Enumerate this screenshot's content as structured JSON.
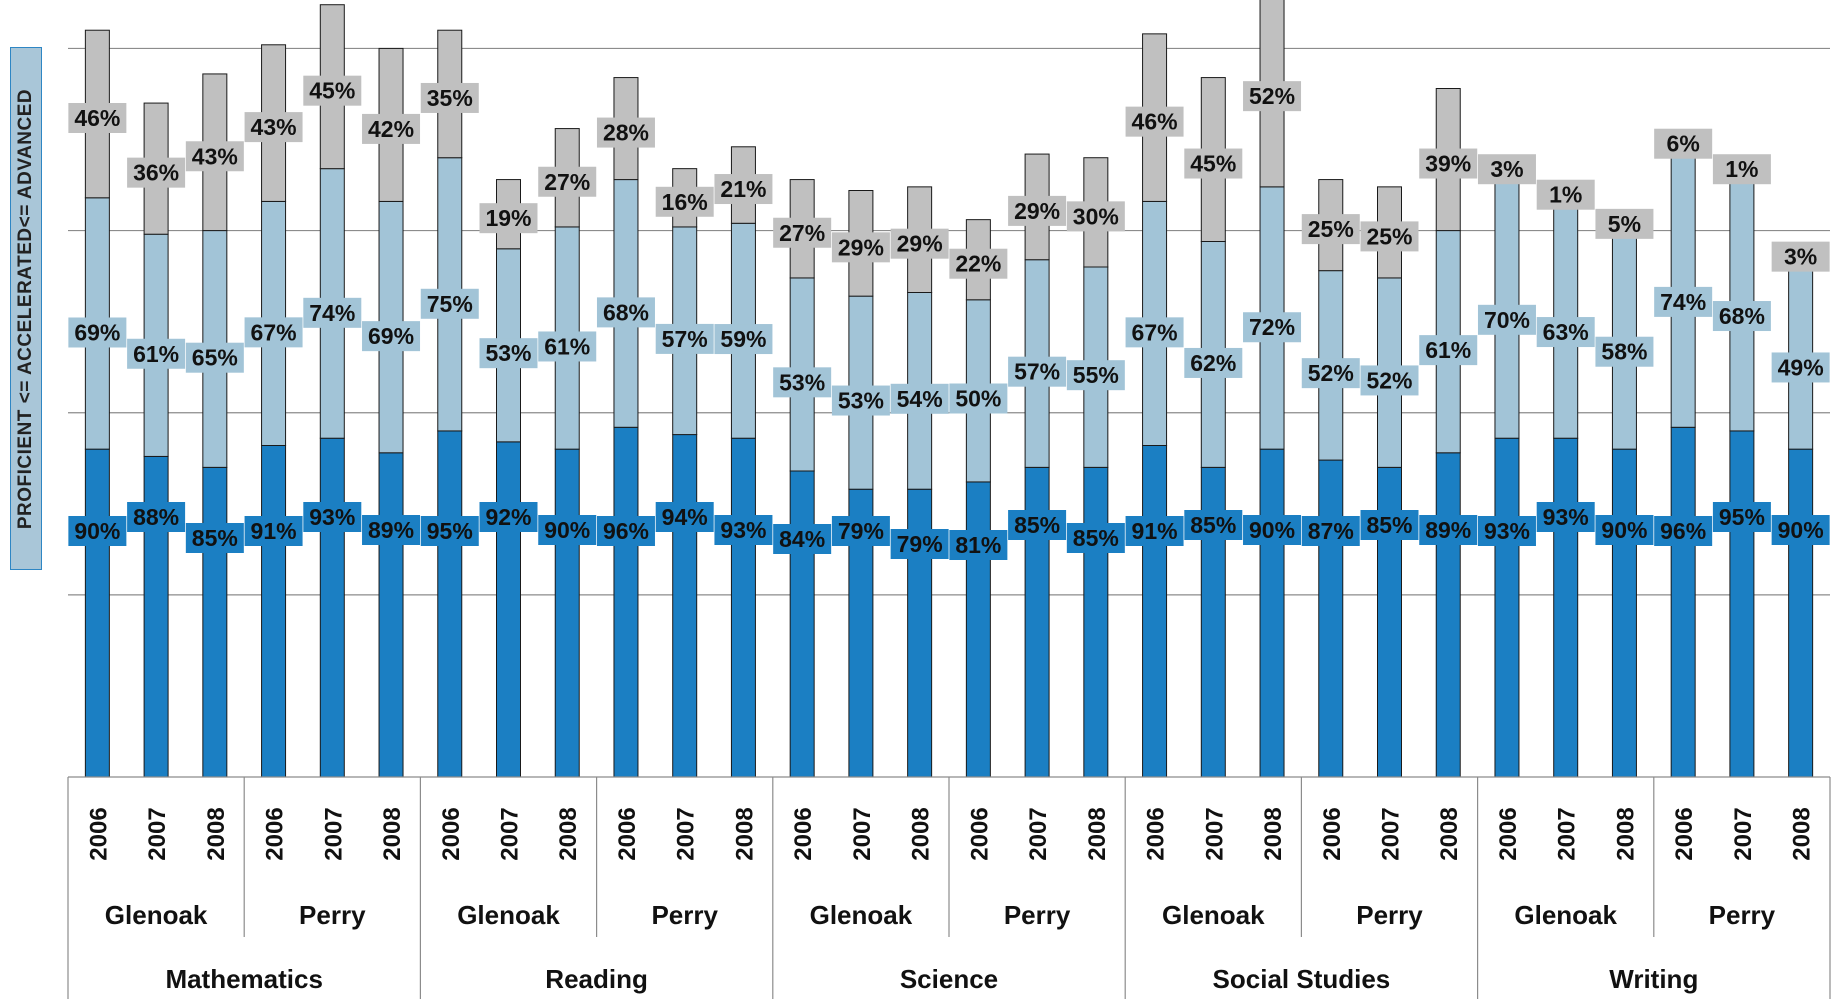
{
  "chart_data": {
    "type": "bar",
    "stacked": true,
    "y_axis_label": "PROFICIENT <=   ACCELERATED<=   ADVANCED",
    "ylim": [
      0,
      210
    ],
    "grid": true,
    "colors": {
      "proficient": "#1b7fc3",
      "accelerated": "#a2c4d7",
      "advanced": "#c0c0c0"
    },
    "groups": [
      {
        "subject": "Mathematics",
        "schools": [
          {
            "school": "Glenoak",
            "years": [
              {
                "year": "2006",
                "proficient": 90,
                "accelerated": 69,
                "advanced": 46
              },
              {
                "year": "2007",
                "proficient": 88,
                "accelerated": 61,
                "advanced": 36
              },
              {
                "year": "2008",
                "proficient": 85,
                "accelerated": 65,
                "advanced": 43
              }
            ]
          },
          {
            "school": "Perry",
            "years": [
              {
                "year": "2006",
                "proficient": 91,
                "accelerated": 67,
                "advanced": 43
              },
              {
                "year": "2007",
                "proficient": 93,
                "accelerated": 74,
                "advanced": 45
              },
              {
                "year": "2008",
                "proficient": 89,
                "accelerated": 69,
                "advanced": 42
              }
            ]
          }
        ]
      },
      {
        "subject": "Reading",
        "schools": [
          {
            "school": "Glenoak",
            "years": [
              {
                "year": "2006",
                "proficient": 95,
                "accelerated": 75,
                "advanced": 35
              },
              {
                "year": "2007",
                "proficient": 92,
                "accelerated": 53,
                "advanced": 19
              },
              {
                "year": "2008",
                "proficient": 90,
                "accelerated": 61,
                "advanced": 27
              }
            ]
          },
          {
            "school": "Perry",
            "years": [
              {
                "year": "2006",
                "proficient": 96,
                "accelerated": 68,
                "advanced": 28
              },
              {
                "year": "2007",
                "proficient": 94,
                "accelerated": 57,
                "advanced": 16
              },
              {
                "year": "2008",
                "proficient": 93,
                "accelerated": 59,
                "advanced": 21
              }
            ]
          }
        ]
      },
      {
        "subject": "Science",
        "schools": [
          {
            "school": "Glenoak",
            "years": [
              {
                "year": "2006",
                "proficient": 84,
                "accelerated": 53,
                "advanced": 27
              },
              {
                "year": "2007",
                "proficient": 79,
                "accelerated": 53,
                "advanced": 29
              },
              {
                "year": "2008",
                "proficient": 79,
                "accelerated": 54,
                "advanced": 29
              }
            ]
          },
          {
            "school": "Perry",
            "years": [
              {
                "year": "2006",
                "proficient": 81,
                "accelerated": 50,
                "advanced": 22
              },
              {
                "year": "2007",
                "proficient": 85,
                "accelerated": 57,
                "advanced": 29
              },
              {
                "year": "2008",
                "proficient": 85,
                "accelerated": 55,
                "advanced": 30
              }
            ]
          }
        ]
      },
      {
        "subject": "Social Studies",
        "schools": [
          {
            "school": "Glenoak",
            "years": [
              {
                "year": "2006",
                "proficient": 91,
                "accelerated": 67,
                "advanced": 46
              },
              {
                "year": "2007",
                "proficient": 85,
                "accelerated": 62,
                "advanced": 45
              },
              {
                "year": "2008",
                "proficient": 90,
                "accelerated": 72,
                "advanced": 52
              }
            ]
          },
          {
            "school": "Perry",
            "years": [
              {
                "year": "2006",
                "proficient": 87,
                "accelerated": 52,
                "advanced": 25
              },
              {
                "year": "2007",
                "proficient": 85,
                "accelerated": 52,
                "advanced": 25
              },
              {
                "year": "2008",
                "proficient": 89,
                "accelerated": 61,
                "advanced": 39
              }
            ]
          }
        ]
      },
      {
        "subject": "Writing",
        "schools": [
          {
            "school": "Glenoak",
            "years": [
              {
                "year": "2006",
                "proficient": 93,
                "accelerated": 70,
                "advanced": 3
              },
              {
                "year": "2007",
                "proficient": 93,
                "accelerated": 63,
                "advanced": 1
              },
              {
                "year": "2008",
                "proficient": 90,
                "accelerated": 58,
                "advanced": 5
              }
            ]
          },
          {
            "school": "Perry",
            "years": [
              {
                "year": "2006",
                "proficient": 96,
                "accelerated": 74,
                "advanced": 6
              },
              {
                "year": "2007",
                "proficient": 95,
                "accelerated": 68,
                "advanced": 1
              },
              {
                "year": "2008",
                "proficient": 90,
                "accelerated": 49,
                "advanced": 3
              }
            ]
          }
        ]
      }
    ]
  }
}
